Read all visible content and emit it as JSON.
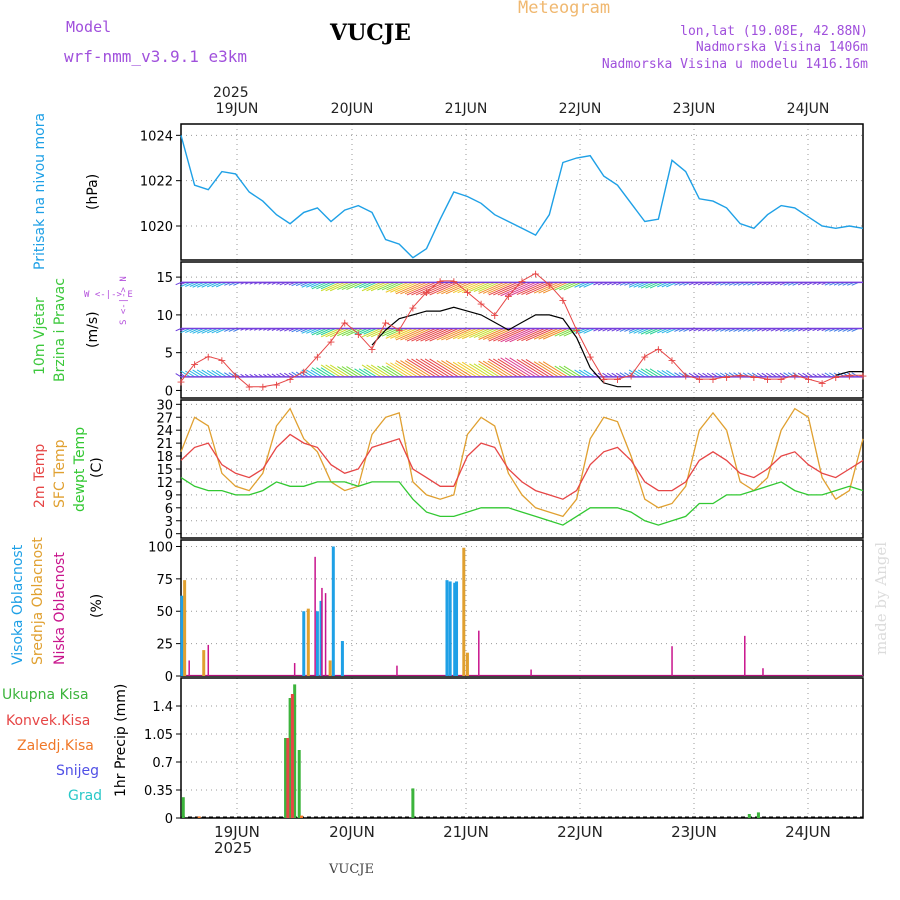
{
  "header": {
    "model_label": "Model",
    "model_name": "wrf-nmm_v3.9.1  e3km",
    "station": "VUCJE",
    "title": "Meteogram",
    "lonlat": "lon,lat (19.08E, 42.88N)",
    "elevation": "Nadmorska Visina 1406m",
    "model_elevation": "Nadmorska Visina u modelu 1416.16m",
    "footer_station": "VUCJE",
    "watermark": "made by Angel"
  },
  "colors": {
    "pressure": "#1ea0e6",
    "wind_speed": "#e64646",
    "gust": "#000000",
    "temp2m": "#e64646",
    "sfc_temp": "#e0a030",
    "dewpoint": "#32c832",
    "high_cloud": "#1ea0e6",
    "mid_cloud": "#e0a030",
    "low_cloud": "#c8148c",
    "total_precip": "#3cb43c",
    "conv_precip": "#e64646",
    "frz_precip": "#f07828",
    "snow": "#5050e6",
    "hail": "#28c8c8"
  },
  "chart_data": [
    {
      "type": "line",
      "title": "Pritisak na nivou mora",
      "ylabel": "(hPa)",
      "ylim": [
        1018.5,
        1024.5
      ],
      "yticks": [
        "1024",
        "1022",
        "1020"
      ],
      "top_year": "2025",
      "top_ticks": [
        "19JUN",
        "20JUN",
        "21JUN",
        "22JUN",
        "23JUN",
        "24JUN"
      ],
      "x": [
        0,
        3,
        6,
        9,
        12,
        15,
        18,
        21,
        24,
        27,
        30,
        33,
        36,
        39,
        42,
        45,
        48,
        51,
        54,
        57,
        60,
        63,
        66,
        69,
        72,
        75,
        78,
        81,
        84,
        87,
        90,
        93,
        96,
        99,
        102,
        105,
        108,
        111,
        114,
        117,
        120,
        123,
        126,
        129,
        132,
        135,
        138,
        141,
        144,
        147,
        150
      ],
      "values": [
        1024.0,
        1021.8,
        1021.6,
        1022.4,
        1022.3,
        1021.5,
        1021.1,
        1020.5,
        1020.1,
        1020.6,
        1020.8,
        1020.2,
        1020.7,
        1020.9,
        1020.6,
        1019.4,
        1019.2,
        1018.6,
        1019.0,
        1020.3,
        1021.5,
        1021.3,
        1021.0,
        1020.5,
        1020.2,
        1019.9,
        1019.6,
        1020.5,
        1022.8,
        1023.0,
        1023.1,
        1022.2,
        1021.8,
        1021.0,
        1020.2,
        1020.3,
        1022.9,
        1022.4,
        1021.2,
        1021.1,
        1020.8,
        1020.1,
        1019.9,
        1020.5,
        1020.9,
        1020.8,
        1020.4,
        1020.0,
        1019.9,
        1020.0,
        1019.9
      ]
    },
    {
      "type": "line",
      "title": "10m Vjetar Brzina i Pravac",
      "ylabel": "(m/s)",
      "compass": "W <-|-> E",
      "compass_v": "S <-|-> N",
      "ylim": [
        -1,
        17
      ],
      "yticks": [
        "15",
        "10",
        "5",
        "0"
      ],
      "x": [
        0,
        3,
        6,
        9,
        12,
        15,
        18,
        21,
        24,
        27,
        30,
        33,
        36,
        39,
        42,
        45,
        48,
        51,
        54,
        57,
        60,
        63,
        66,
        69,
        72,
        75,
        78,
        81,
        84,
        87,
        90,
        93,
        96,
        99,
        102,
        105,
        108,
        111,
        114,
        117,
        120,
        123,
        126,
        129,
        132,
        135,
        138,
        141,
        144,
        147,
        150
      ],
      "series": [
        {
          "name": "wind speed",
          "values": [
            1.2,
            3.5,
            4.5,
            4.0,
            2.0,
            0.5,
            0.5,
            0.8,
            1.5,
            2.5,
            4.5,
            6.5,
            9.0,
            7.5,
            5.5,
            9.0,
            8.0,
            11.0,
            13.0,
            14.5,
            14.5,
            13.0,
            11.5,
            10.0,
            12.5,
            14.5,
            15.5,
            14.0,
            12.0,
            8.0,
            4.5,
            1.5,
            1.5,
            2.0,
            4.5,
            5.5,
            4.0,
            2.0,
            1.5,
            1.5,
            1.8,
            2.0,
            1.8,
            1.5,
            1.5,
            2.0,
            1.5,
            1.0,
            1.8,
            2.0,
            2.0
          ]
        },
        {
          "name": "gust",
          "values": [
            null,
            null,
            null,
            null,
            null,
            null,
            null,
            null,
            null,
            null,
            null,
            null,
            null,
            null,
            6.0,
            8.0,
            9.5,
            10.0,
            10.5,
            10.5,
            11.0,
            10.5,
            10.0,
            9.0,
            8.0,
            9.0,
            10.0,
            10.0,
            9.5,
            7.0,
            3.0,
            1.0,
            0.5,
            0.5,
            null,
            null,
            null,
            null,
            null,
            null,
            null,
            null,
            null,
            null,
            null,
            null,
            null,
            null,
            2.0,
            2.5,
            2.5
          ]
        }
      ]
    },
    {
      "type": "line",
      "title": "2m Temp / SFC Temp / dewpt Temp",
      "ylabel": "(C)",
      "ylim": [
        -1,
        31
      ],
      "yticks": [
        "30",
        "27",
        "24",
        "21",
        "18",
        "15",
        "12",
        "9",
        "6",
        "3",
        "0"
      ],
      "x": [
        0,
        3,
        6,
        9,
        12,
        15,
        18,
        21,
        24,
        27,
        30,
        33,
        36,
        39,
        42,
        45,
        48,
        51,
        54,
        57,
        60,
        63,
        66,
        69,
        72,
        75,
        78,
        81,
        84,
        87,
        90,
        93,
        96,
        99,
        102,
        105,
        108,
        111,
        114,
        117,
        120,
        123,
        126,
        129,
        132,
        135,
        138,
        141,
        144,
        147,
        150
      ],
      "series": [
        {
          "name": "2m Temp",
          "values": [
            17,
            20,
            21,
            16,
            14,
            13,
            15,
            20,
            23,
            21,
            20,
            16,
            14,
            15,
            20,
            21,
            22,
            15,
            13,
            11,
            11,
            18,
            21,
            20,
            15,
            12,
            10,
            9,
            8,
            10,
            16,
            19,
            20,
            17,
            12,
            10,
            10,
            12,
            17,
            19,
            17,
            14,
            13,
            15,
            18,
            19,
            16,
            14,
            13,
            15,
            17
          ]
        },
        {
          "name": "SFC Temp",
          "values": [
            19,
            27,
            25,
            14,
            11,
            10,
            14,
            25,
            29,
            22,
            19,
            12,
            10,
            11,
            23,
            27,
            28,
            12,
            9,
            8,
            9,
            23,
            27,
            25,
            14,
            9,
            6,
            5,
            4,
            8,
            22,
            27,
            26,
            18,
            8,
            6,
            7,
            11,
            24,
            28,
            24,
            12,
            10,
            13,
            24,
            29,
            27,
            13,
            8,
            10,
            22
          ]
        },
        {
          "name": "dewpt Temp",
          "values": [
            13,
            11,
            10,
            10,
            9,
            9,
            10,
            12,
            11,
            11,
            12,
            12,
            12,
            11,
            12,
            12,
            12,
            8,
            5,
            4,
            4,
            5,
            6,
            6,
            6,
            5,
            4,
            3,
            2,
            4,
            6,
            6,
            6,
            5,
            3,
            2,
            3,
            4,
            7,
            7,
            9,
            9,
            10,
            11,
            12,
            10,
            9,
            9,
            10,
            11,
            10
          ]
        }
      ]
    },
    {
      "type": "bar",
      "title": "Visoka / Srednja / Niska Oblacnost",
      "ylabel": "(%)",
      "ylim": [
        0,
        105
      ],
      "yticks": [
        "100",
        "75",
        "50",
        "25",
        "0"
      ],
      "series": [
        {
          "name": "Visoka Oblacnost",
          "x": [
            0.2,
            27,
            30,
            30.8,
            33.5,
            35.5,
            58.5,
            59.2,
            60.2,
            60.6
          ],
          "values": [
            62,
            50,
            50,
            58,
            100,
            27,
            74,
            73,
            72,
            73
          ]
        },
        {
          "name": "Srednja Oblacnost",
          "x": [
            0.8,
            5,
            28,
            32.8,
            62.2,
            63
          ],
          "values": [
            74,
            20,
            52,
            12,
            99,
            18
          ]
        },
        {
          "name": "Niska Oblacnost",
          "x": [
            1.8,
            6,
            25,
            29.5,
            31,
            31.8,
            47.5,
            65.5,
            77,
            108,
            124,
            128
          ],
          "values": [
            12,
            24,
            10,
            92,
            68,
            64,
            8,
            35,
            5,
            23,
            31,
            6
          ]
        }
      ]
    },
    {
      "type": "bar",
      "title": "1hr Precip",
      "ylabel": "1hr Precip (mm)",
      "ylim": [
        0,
        1.75
      ],
      "yticks": [
        "1.4",
        "1.05",
        "0.7",
        "0.35",
        "0"
      ],
      "bottom_year": "2025",
      "bottom_ticks": [
        "19JUN",
        "20JUN",
        "21JUN",
        "22JUN",
        "23JUN",
        "24JUN"
      ],
      "legend": [
        "Ukupna Kisa",
        "Konvek.Kisa",
        "Zaledj.Kisa",
        "Snijeg",
        "Grad"
      ],
      "series": [
        {
          "name": "Ukupna Kisa",
          "x": [
            0.5,
            23,
            24,
            25,
            26,
            51,
            125,
            127
          ],
          "values": [
            0.26,
            1.0,
            1.5,
            1.67,
            0.85,
            0.37,
            0.05,
            0.07
          ]
        },
        {
          "name": "Konvek.Kisa",
          "x": [
            23.5,
            24.5
          ],
          "values": [
            1.0,
            1.55
          ]
        },
        {
          "name": "Zaledj.Kisa",
          "x": [
            4,
            26.5
          ],
          "values": [
            0.02,
            0.03
          ]
        },
        {
          "name": "Snijeg",
          "x": [],
          "values": []
        },
        {
          "name": "Grad",
          "x": [],
          "values": []
        }
      ]
    }
  ]
}
